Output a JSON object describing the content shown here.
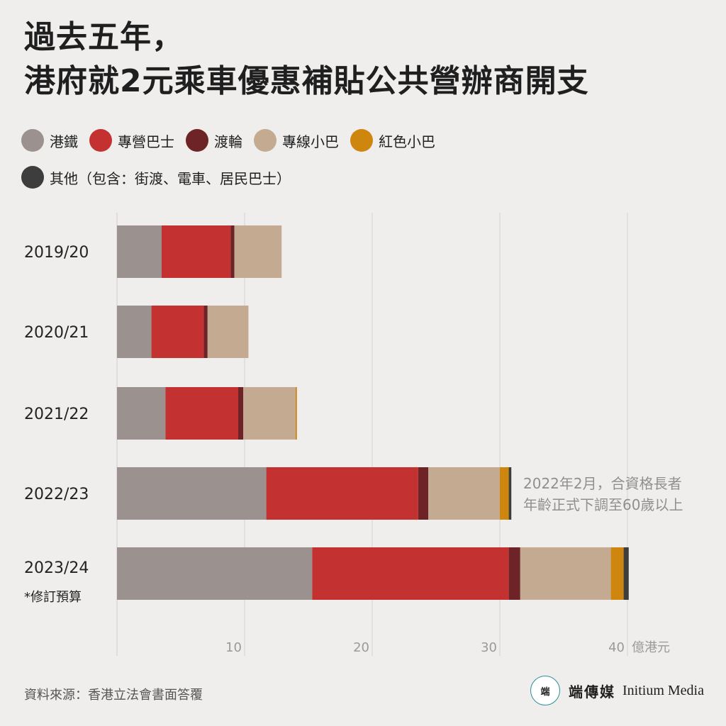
{
  "title": {
    "line1": "過去五年，",
    "line2": "港府就2元乘車優惠補貼公共營辦商開支"
  },
  "legend": [
    {
      "label": "港鐵",
      "color": "#9b918e"
    },
    {
      "label": "專營巴士",
      "color": "#c33131"
    },
    {
      "label": "渡輪",
      "color": "#6e2326"
    },
    {
      "label": "專線小巴",
      "color": "#c5aa92"
    },
    {
      "label": "紅色小巴",
      "color": "#cf860f"
    },
    {
      "label": "其他（包含：街渡、電車、居民巴士）",
      "color": "#3d3d3d"
    }
  ],
  "chart_data": {
    "type": "bar",
    "orientation": "horizontal",
    "stacked": true,
    "categories": [
      "2019/20",
      "2020/21",
      "2021/22",
      "2022/23",
      "2023/24"
    ],
    "category_notes": [
      "",
      "",
      "",
      "",
      "*修訂預算"
    ],
    "series": [
      {
        "name": "港鐵",
        "color": "#9b918e",
        "values": [
          3.5,
          2.7,
          3.8,
          11.7,
          15.3
        ]
      },
      {
        "name": "專營巴士",
        "color": "#c33131",
        "values": [
          5.4,
          4.1,
          5.7,
          11.9,
          15.4
        ]
      },
      {
        "name": "渡輪",
        "color": "#6e2326",
        "values": [
          0.3,
          0.3,
          0.4,
          0.8,
          0.9
        ]
      },
      {
        "name": "專線小巴",
        "color": "#c5aa92",
        "values": [
          3.7,
          3.2,
          4.1,
          5.6,
          7.1
        ]
      },
      {
        "name": "紅色小巴",
        "color": "#cf860f",
        "values": [
          0,
          0,
          0.1,
          0.7,
          1.0
        ]
      },
      {
        "name": "其他（包含：街渡、電車、居民巴士）",
        "color": "#3d3d3d",
        "values": [
          0,
          0,
          0,
          0.2,
          0.4
        ]
      }
    ],
    "xlim": [
      0,
      40
    ],
    "xticks": [
      10,
      20,
      30,
      40
    ],
    "xticklabels": [
      "10",
      "20",
      "30",
      "40"
    ],
    "xunit": "億港元",
    "grid": true,
    "legend_position": "top",
    "annotation": {
      "category": "2022/23",
      "lines": [
        "2022年2月，合資格長者",
        "年齡正式下調至60歲以上"
      ]
    }
  },
  "source": "資料來源：香港立法會書面答覆",
  "brand": {
    "logo_text": "端",
    "name_cn": "端傳媒",
    "name_en": "Initium Media"
  }
}
